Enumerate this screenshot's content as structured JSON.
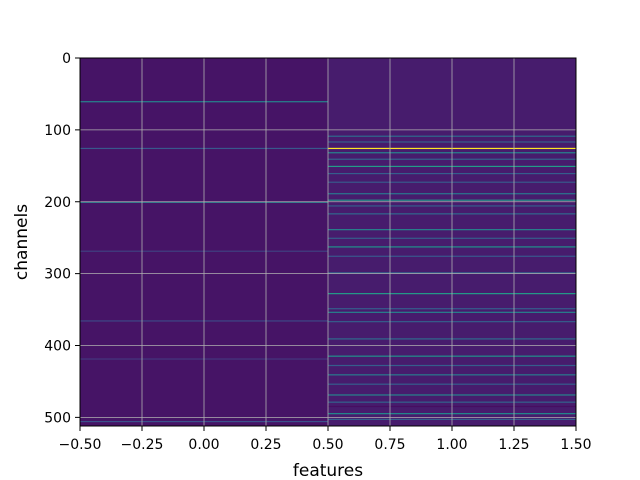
{
  "chart_data": {
    "type": "heatmap",
    "xlabel": "features",
    "ylabel": "channels",
    "xlim": [
      -0.5,
      1.5
    ],
    "ylim": [
      512,
      0
    ],
    "y_inverted": true,
    "grid": true,
    "colormap": "viridis",
    "x_ticks": [
      -0.5,
      -0.25,
      0.0,
      0.25,
      0.5,
      0.75,
      1.0,
      1.25,
      1.5
    ],
    "x_tick_labels": [
      "−0.50",
      "−0.25",
      "0.00",
      "0.25",
      "0.50",
      "0.75",
      "1.00",
      "1.25",
      "1.50"
    ],
    "y_ticks": [
      0,
      100,
      200,
      300,
      400,
      500
    ],
    "y_tick_labels": [
      "0",
      "100",
      "200",
      "300",
      "400",
      "500"
    ],
    "columns": [
      {
        "feature": 0,
        "base_value": 0.07,
        "highlight_rows": [
          {
            "channel": 60,
            "value": 0.45
          },
          {
            "channel": 125,
            "value": 0.28
          },
          {
            "channel": 200,
            "value": 0.42
          },
          {
            "channel": 268,
            "value": 0.2
          },
          {
            "channel": 365,
            "value": 0.22
          },
          {
            "channel": 418,
            "value": 0.18
          },
          {
            "channel": 505,
            "value": 0.25
          }
        ]
      },
      {
        "feature": 1,
        "base_value": 0.1,
        "highlight_rows": [
          {
            "channel": 108,
            "value": 0.35
          },
          {
            "channel": 116,
            "value": 0.3
          },
          {
            "channel": 125,
            "value": 1.0
          },
          {
            "channel": 131,
            "value": 0.45
          },
          {
            "channel": 140,
            "value": 0.32
          },
          {
            "channel": 150,
            "value": 0.55
          },
          {
            "channel": 160,
            "value": 0.3
          },
          {
            "channel": 172,
            "value": 0.28
          },
          {
            "channel": 188,
            "value": 0.4
          },
          {
            "channel": 197,
            "value": 0.52
          },
          {
            "channel": 205,
            "value": 0.3
          },
          {
            "channel": 216,
            "value": 0.34
          },
          {
            "channel": 238,
            "value": 0.45
          },
          {
            "channel": 250,
            "value": 0.3
          },
          {
            "channel": 262,
            "value": 0.5
          },
          {
            "channel": 275,
            "value": 0.28
          },
          {
            "channel": 298,
            "value": 0.3
          },
          {
            "channel": 327,
            "value": 0.55
          },
          {
            "channel": 348,
            "value": 0.3
          },
          {
            "channel": 353,
            "value": 0.45
          },
          {
            "channel": 366,
            "value": 0.3
          },
          {
            "channel": 390,
            "value": 0.35
          },
          {
            "channel": 414,
            "value": 0.5
          },
          {
            "channel": 427,
            "value": 0.3
          },
          {
            "channel": 440,
            "value": 0.42
          },
          {
            "channel": 453,
            "value": 0.3
          },
          {
            "channel": 468,
            "value": 0.45
          },
          {
            "channel": 478,
            "value": 0.32
          },
          {
            "channel": 484,
            "value": 0.05
          },
          {
            "channel": 494,
            "value": 0.48
          },
          {
            "channel": 502,
            "value": 0.3
          }
        ]
      }
    ]
  }
}
